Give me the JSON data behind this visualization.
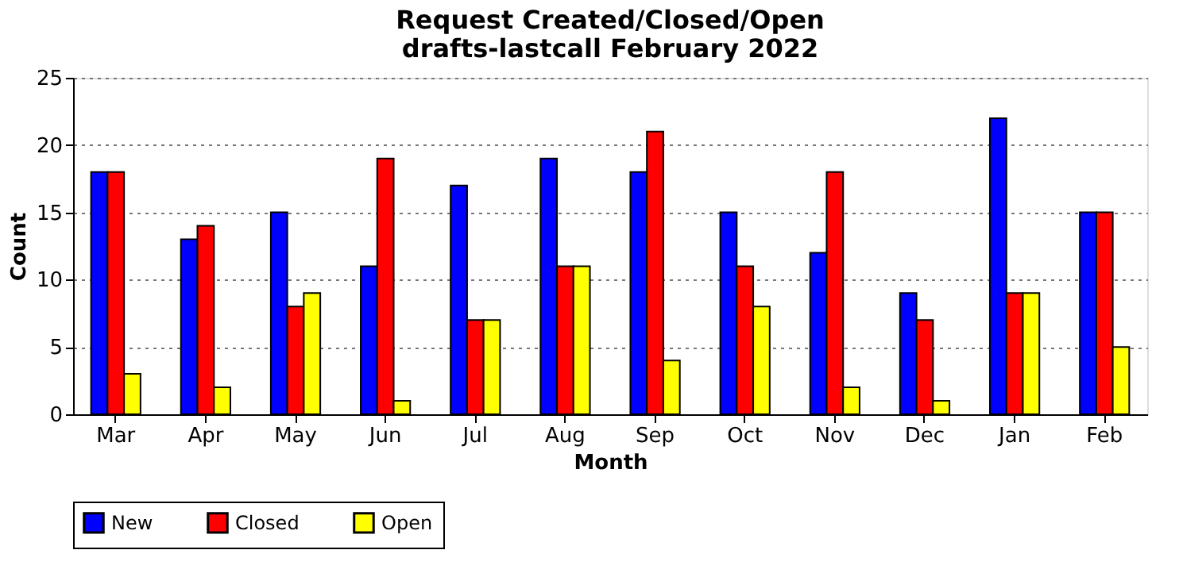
{
  "chart_data": {
    "type": "bar",
    "title": "Request Created/Closed/Open\ndrafts-lastcall February 2022",
    "xlabel": "Month",
    "ylabel": "Count",
    "categories": [
      "Mar",
      "Apr",
      "May",
      "Jun",
      "Jul",
      "Aug",
      "Sep",
      "Oct",
      "Nov",
      "Dec",
      "Jan",
      "Feb"
    ],
    "series": [
      {
        "name": "New",
        "color": "#0000ff",
        "values": [
          18,
          13,
          15,
          11,
          17,
          19,
          18,
          15,
          12,
          9,
          22,
          15
        ]
      },
      {
        "name": "Closed",
        "color": "#ff0000",
        "values": [
          18,
          14,
          8,
          19,
          7,
          11,
          21,
          11,
          18,
          7,
          9,
          15
        ]
      },
      {
        "name": "Open",
        "color": "#ffff00",
        "values": [
          3,
          2,
          9,
          1,
          7,
          11,
          4,
          8,
          2,
          1,
          9,
          5
        ]
      }
    ],
    "ylim": [
      0,
      25
    ],
    "yticks": [
      0,
      5,
      10,
      15,
      20,
      25
    ],
    "grid": "y",
    "legend": "bottom"
  }
}
